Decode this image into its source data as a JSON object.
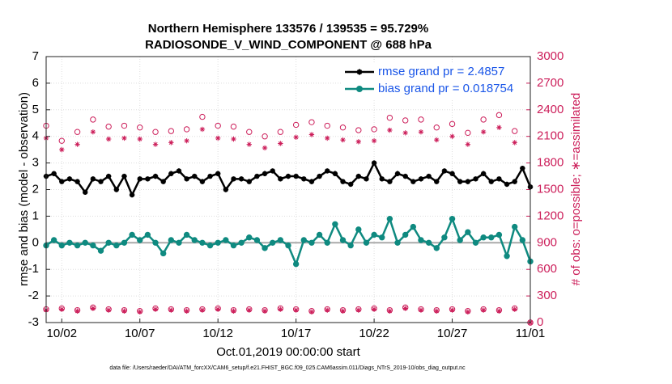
{
  "chart_data": {
    "type": "line",
    "title": "Northern Hemisphere 133576 / 139535 = 95.729%",
    "subtitle": "RADIOSONDE_V_WIND_COMPONENT @ 688 hPa",
    "xlabel": "Oct.01,2019 00:00:00 start",
    "ylabel": "rmse and bias (model - observation)",
    "y2label": "# of obs: o=possible; ∗=assimilated",
    "footnote": "data file: /Users/raeder/DAI/ATM_forcXX/CAM6_setup/f.e21.FHIST_BGC.f09_025.CAM6assim.011/Diags_NTrS_2019-10/obs_diag_output.nc",
    "xlim": [
      0,
      31
    ],
    "xticks": [
      {
        "value": 1,
        "label": "10/02"
      },
      {
        "value": 6,
        "label": "10/07"
      },
      {
        "value": 11,
        "label": "10/12"
      },
      {
        "value": 16,
        "label": "10/17"
      },
      {
        "value": 21,
        "label": "10/22"
      },
      {
        "value": 26,
        "label": "10/27"
      },
      {
        "value": 31,
        "label": "11/01"
      }
    ],
    "ylim": [
      -3,
      7
    ],
    "yticks": [
      -3,
      -2,
      -1,
      0,
      1,
      2,
      3,
      4,
      5,
      6,
      7
    ],
    "y2lim": [
      0,
      3000
    ],
    "y2ticks": [
      0,
      300,
      600,
      900,
      1200,
      1500,
      1800,
      2100,
      2400,
      2700,
      3000
    ],
    "grid": true,
    "hline": 0,
    "legend": "upper right",
    "legend_text_color": "#1a56e8",
    "y2_color": "#cc1e5a",
    "series": [
      {
        "name": "rmse grand pr = 2.4857",
        "color": "#000000",
        "marker": "*",
        "x": [
          0,
          0.5,
          1,
          1.5,
          2,
          2.5,
          3,
          3.5,
          4,
          4.5,
          5,
          5.5,
          6,
          6.5,
          7,
          7.5,
          8,
          8.5,
          9,
          9.5,
          10,
          10.5,
          11,
          11.5,
          12,
          12.5,
          13,
          13.5,
          14,
          14.5,
          15,
          15.5,
          16,
          16.5,
          17,
          17.5,
          18,
          18.5,
          19,
          19.5,
          20,
          20.5,
          21,
          21.5,
          22,
          22.5,
          23,
          23.5,
          24,
          24.5,
          25,
          25.5,
          26,
          26.5,
          27,
          27.5,
          28,
          28.5,
          29,
          29.5,
          30,
          30.5,
          31
        ],
        "values": [
          2.5,
          2.6,
          2.3,
          2.4,
          2.3,
          1.9,
          2.4,
          2.3,
          2.5,
          2.0,
          2.5,
          1.8,
          2.4,
          2.4,
          2.5,
          2.3,
          2.6,
          2.7,
          2.4,
          2.5,
          2.3,
          2.5,
          2.6,
          2.0,
          2.4,
          2.4,
          2.3,
          2.5,
          2.6,
          2.7,
          2.4,
          2.5,
          2.5,
          2.4,
          2.3,
          2.5,
          2.7,
          2.6,
          2.3,
          2.2,
          2.5,
          2.4,
          3.0,
          2.4,
          2.3,
          2.6,
          2.5,
          2.3,
          2.4,
          2.5,
          2.3,
          2.7,
          2.6,
          2.3,
          2.3,
          2.4,
          2.6,
          2.3,
          2.4,
          2.2,
          2.3,
          2.8,
          2.1
        ]
      },
      {
        "name": "bias grand pr = 0.018754",
        "color": "#0f8a80",
        "marker": "o",
        "x": [
          0,
          0.5,
          1,
          1.5,
          2,
          2.5,
          3,
          3.5,
          4,
          4.5,
          5,
          5.5,
          6,
          6.5,
          7,
          7.5,
          8,
          8.5,
          9,
          9.5,
          10,
          10.5,
          11,
          11.5,
          12,
          12.5,
          13,
          13.5,
          14,
          14.5,
          15,
          15.5,
          16,
          16.5,
          17,
          17.5,
          18,
          18.5,
          19,
          19.5,
          20,
          20.5,
          21,
          21.5,
          22,
          22.5,
          23,
          23.5,
          24,
          24.5,
          25,
          25.5,
          26,
          26.5,
          27,
          27.5,
          28,
          28.5,
          29,
          29.5,
          30,
          30.5,
          31
        ],
        "values": [
          -0.1,
          0.1,
          -0.1,
          0.0,
          -0.1,
          0.0,
          -0.1,
          -0.3,
          0.0,
          -0.1,
          0.0,
          0.3,
          0.1,
          0.3,
          0.0,
          -0.4,
          0.1,
          0.0,
          0.3,
          0.1,
          0.0,
          -0.1,
          0.0,
          0.1,
          -0.1,
          0.0,
          0.2,
          0.1,
          -0.2,
          0.0,
          0.1,
          -0.1,
          -0.8,
          0.1,
          0.0,
          0.3,
          0.0,
          0.7,
          0.1,
          -0.1,
          0.5,
          0.0,
          0.3,
          0.2,
          0.9,
          0.0,
          0.3,
          0.6,
          0.1,
          0.0,
          -0.2,
          0.2,
          0.9,
          0.1,
          0.4,
          0.0,
          0.2,
          0.2,
          0.3,
          -0.5,
          0.6,
          0.1,
          -0.7
        ]
      }
    ],
    "obs_series": [
      {
        "marker": "o",
        "axis": "y2",
        "color": "#cc1e5a",
        "x": [
          0,
          1,
          2,
          3,
          4,
          5,
          6,
          7,
          8,
          9,
          10,
          11,
          12,
          13,
          14,
          15,
          16,
          17,
          18,
          19,
          20,
          21,
          22,
          23,
          24,
          25,
          26,
          27,
          28,
          29,
          30,
          31
        ],
        "values": [
          2220,
          2050,
          2150,
          2290,
          2210,
          2220,
          2200,
          2150,
          2160,
          2180,
          2320,
          2220,
          2210,
          2150,
          2100,
          2150,
          2230,
          2260,
          2220,
          2200,
          2170,
          2180,
          2310,
          2280,
          2290,
          2200,
          2240,
          2140,
          2290,
          2340,
          2160,
          0
        ]
      },
      {
        "marker": "*",
        "axis": "y2",
        "color": "#cc1e5a",
        "x": [
          0,
          1,
          2,
          3,
          4,
          5,
          6,
          7,
          8,
          9,
          10,
          11,
          12,
          13,
          14,
          15,
          16,
          17,
          18,
          19,
          20,
          21,
          22,
          23,
          24,
          25,
          26,
          27,
          28,
          29,
          30,
          31
        ],
        "values": [
          2080,
          1950,
          2010,
          2150,
          2070,
          2080,
          2070,
          2010,
          2030,
          2050,
          2180,
          2080,
          2070,
          2010,
          1970,
          2020,
          2090,
          2120,
          2080,
          2060,
          2040,
          2050,
          2170,
          2140,
          2150,
          2060,
          2100,
          2010,
          2150,
          2200,
          2030,
          0
        ]
      },
      {
        "marker": "o",
        "axis": "y2",
        "color": "#cc1e5a",
        "x": [
          0,
          1,
          2,
          3,
          4,
          5,
          6,
          7,
          8,
          9,
          10,
          11,
          12,
          13,
          14,
          15,
          16,
          17,
          18,
          19,
          20,
          21,
          22,
          23,
          24,
          25,
          26,
          27,
          28,
          29,
          30,
          31
        ],
        "values": [
          150,
          160,
          140,
          170,
          150,
          140,
          130,
          160,
          150,
          140,
          150,
          160,
          140,
          150,
          140,
          160,
          150,
          130,
          150,
          140,
          150,
          160,
          140,
          170,
          150,
          140,
          150,
          130,
          150,
          140,
          160,
          0
        ]
      },
      {
        "marker": "*",
        "axis": "y2",
        "color": "#cc1e5a",
        "x": [
          0,
          1,
          2,
          3,
          4,
          5,
          6,
          7,
          8,
          9,
          10,
          11,
          12,
          13,
          14,
          15,
          16,
          17,
          18,
          19,
          20,
          21,
          22,
          23,
          24,
          25,
          26,
          27,
          28,
          29,
          30,
          31
        ],
        "values": [
          140,
          150,
          130,
          160,
          140,
          130,
          120,
          150,
          140,
          130,
          140,
          150,
          130,
          140,
          130,
          150,
          140,
          120,
          140,
          130,
          140,
          150,
          130,
          160,
          140,
          130,
          140,
          120,
          140,
          130,
          150,
          0
        ]
      }
    ]
  }
}
